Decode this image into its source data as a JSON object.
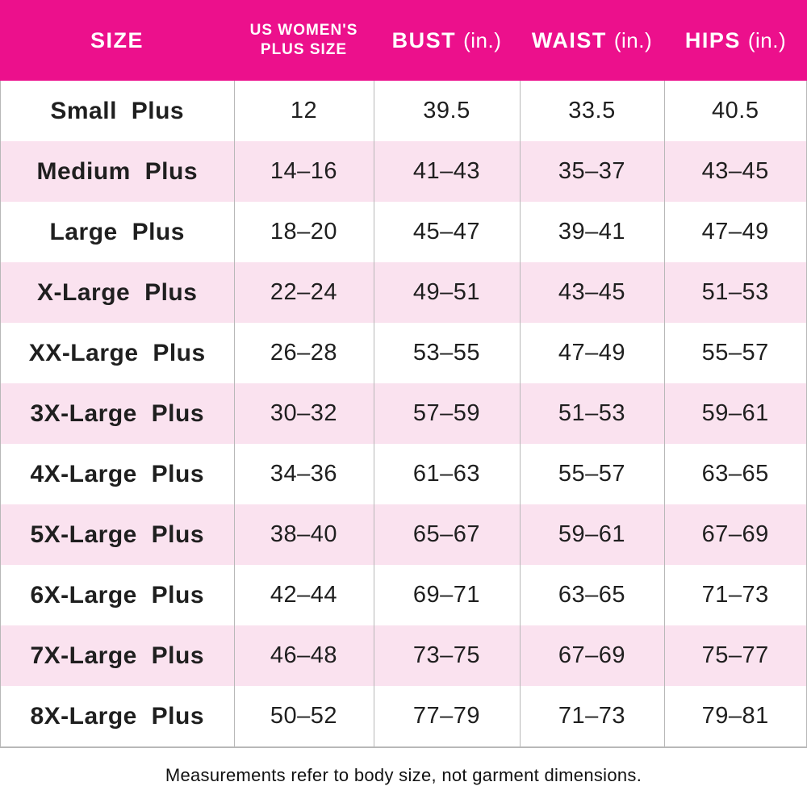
{
  "colors": {
    "header_bg": "#EC108C",
    "header_text": "#FFFFFF",
    "row_alt_bg": "#FAE2EF",
    "text": "#1F1F1F",
    "grid_line": "#B8B8B8"
  },
  "chart_data": {
    "type": "table",
    "columns": [
      {
        "label": "SIZE",
        "unit": ""
      },
      {
        "label": "US WOMEN'S PLUS SIZE",
        "line1": "US WOMEN'S",
        "line2": "PLUS SIZE"
      },
      {
        "label": "BUST",
        "unit": "(in.)"
      },
      {
        "label": "WAIST",
        "unit": "(in.)"
      },
      {
        "label": "HIPS",
        "unit": "(in.)"
      }
    ],
    "rows": [
      {
        "size": "Small Plus",
        "us_plus_size": "12",
        "bust": "39.5",
        "waist": "33.5",
        "hips": "40.5"
      },
      {
        "size": "Medium Plus",
        "us_plus_size": "14–16",
        "bust": "41–43",
        "waist": "35–37",
        "hips": "43–45"
      },
      {
        "size": "Large Plus",
        "us_plus_size": "18–20",
        "bust": "45–47",
        "waist": "39–41",
        "hips": "47–49"
      },
      {
        "size": "X-Large Plus",
        "us_plus_size": "22–24",
        "bust": "49–51",
        "waist": "43–45",
        "hips": "51–53"
      },
      {
        "size": "XX-Large Plus",
        "us_plus_size": "26–28",
        "bust": "53–55",
        "waist": "47–49",
        "hips": "55–57"
      },
      {
        "size": "3X-Large Plus",
        "us_plus_size": "30–32",
        "bust": "57–59",
        "waist": "51–53",
        "hips": "59–61"
      },
      {
        "size": "4X-Large Plus",
        "us_plus_size": "34–36",
        "bust": "61–63",
        "waist": "55–57",
        "hips": "63–65"
      },
      {
        "size": "5X-Large Plus",
        "us_plus_size": "38–40",
        "bust": "65–67",
        "waist": "59–61",
        "hips": "67–69"
      },
      {
        "size": "6X-Large Plus",
        "us_plus_size": "42–44",
        "bust": "69–71",
        "waist": "63–65",
        "hips": "71–73"
      },
      {
        "size": "7X-Large Plus",
        "us_plus_size": "46–48",
        "bust": "73–75",
        "waist": "67–69",
        "hips": "75–77"
      },
      {
        "size": "8X-Large Plus",
        "us_plus_size": "50–52",
        "bust": "77–79",
        "waist": "71–73",
        "hips": "79–81"
      }
    ]
  },
  "footer": {
    "note": "Measurements refer to body size, not garment dimensions."
  }
}
